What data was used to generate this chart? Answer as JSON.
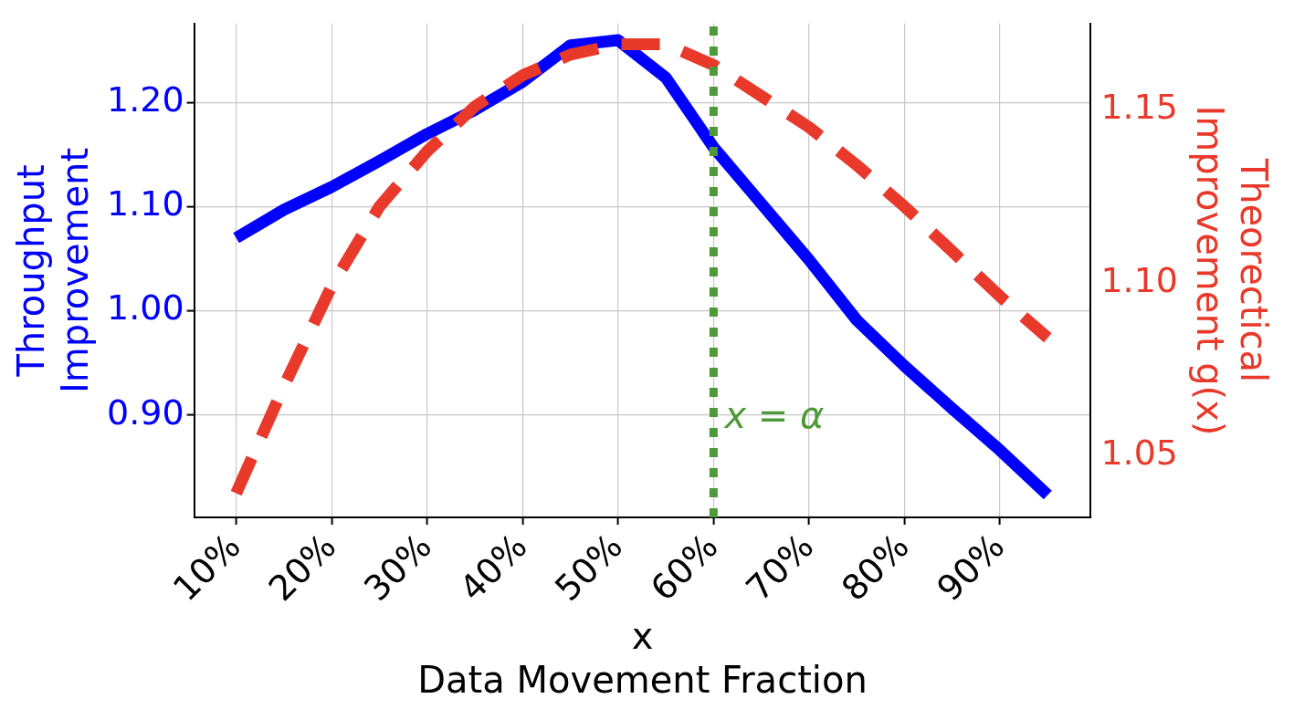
{
  "chart_data": {
    "type": "line",
    "xlabel": "x\nData Movement Fraction",
    "ylabel": "Throughput\nImprovement",
    "y2label": "Theorectical\nImprovement g(x)",
    "x": [
      10,
      15,
      20,
      25,
      30,
      35,
      40,
      45,
      50,
      55,
      60,
      65,
      70,
      75,
      80,
      85,
      90,
      95
    ],
    "series": [
      {
        "color": "#0000ff",
        "line_style": "solid",
        "values": [
          1.07,
          1.097,
          1.119,
          1.144,
          1.17,
          1.193,
          1.22,
          1.255,
          1.26,
          1.224,
          1.157,
          1.103,
          1.049,
          0.991,
          0.947,
          0.906,
          0.866,
          0.823
        ]
      },
      {
        "color": "#e8392a",
        "line_style": "dashed",
        "axis": "y2",
        "values": [
          1.039,
          1.07,
          1.099,
          1.122,
          1.138,
          1.151,
          1.16,
          1.166,
          1.169,
          1.169,
          1.163,
          1.154,
          1.145,
          1.134,
          1.122,
          1.109,
          1.096,
          1.084
        ]
      }
    ],
    "xlim": [
      5.6,
      99.5
    ],
    "xticks": [
      {
        "value": 10,
        "label": "10%"
      },
      {
        "value": 20,
        "label": "20%"
      },
      {
        "value": 30,
        "label": "30%"
      },
      {
        "value": 40,
        "label": "40%"
      },
      {
        "value": 50,
        "label": "50%"
      },
      {
        "value": 60,
        "label": "60%"
      },
      {
        "value": 70,
        "label": "70%"
      },
      {
        "value": 80,
        "label": "80%"
      },
      {
        "value": 90,
        "label": "90%"
      }
    ],
    "ylim": [
      0.8015,
      1.276
    ],
    "yticks": [
      {
        "value": 0.9,
        "label": "0.90"
      },
      {
        "value": 1.0,
        "label": "1.00"
      },
      {
        "value": 1.1,
        "label": "1.10"
      },
      {
        "value": 1.2,
        "label": "1.20"
      }
    ],
    "y2lim": [
      1.032,
      1.175
    ],
    "y2ticks": [
      {
        "value": 1.05,
        "label": "1.05"
      },
      {
        "value": 1.1,
        "label": "1.10"
      },
      {
        "value": 1.15,
        "label": "1.15"
      }
    ],
    "ref_lines": [
      {
        "axis": "x",
        "value": 60,
        "label": "x = α",
        "color": "#4e9a3a",
        "line_style": "dotted"
      }
    ],
    "grid": true,
    "marker": "none",
    "legend": false
  }
}
